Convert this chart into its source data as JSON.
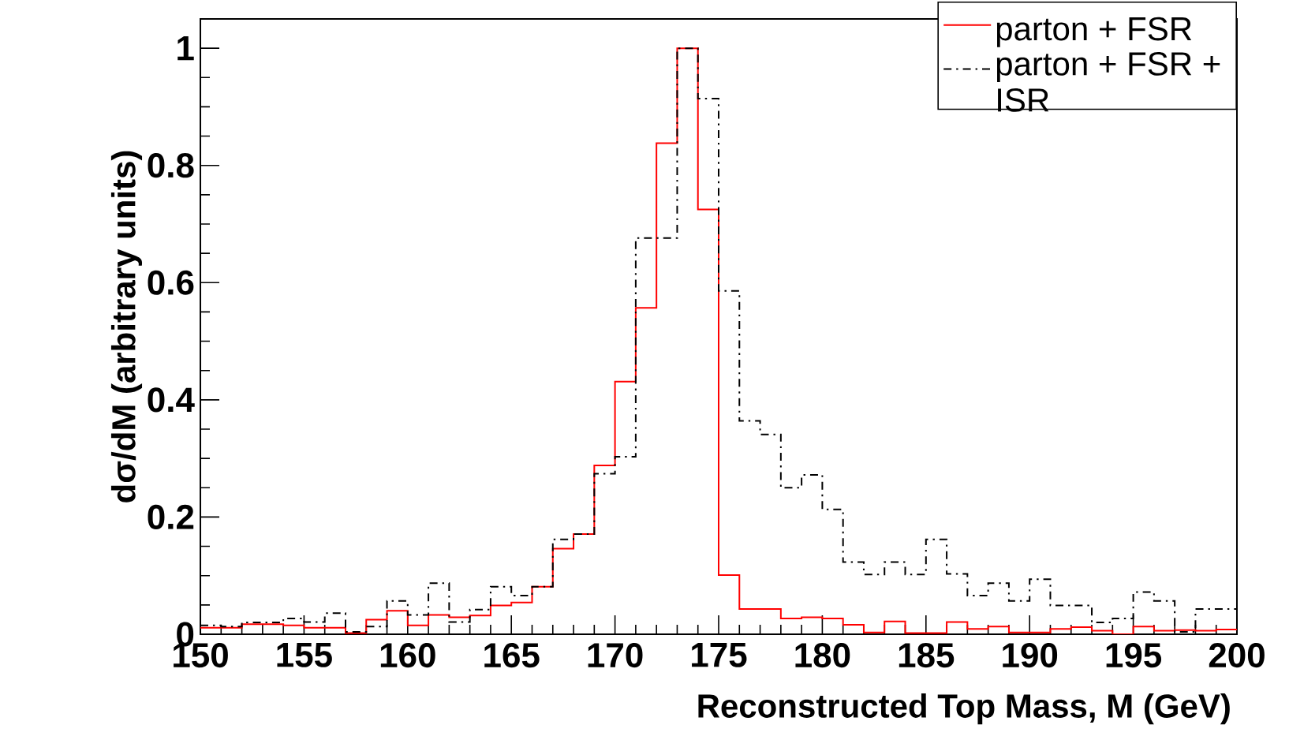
{
  "chart_data": {
    "type": "histogram",
    "xlabel": "Reconstructed Top Mass, M (GeV)",
    "ylabel": "dσ/dM (arbitrary units)",
    "bins": [
      150,
      151,
      152,
      153,
      154,
      155,
      156,
      157,
      158,
      159,
      160,
      161,
      162,
      163,
      164,
      165,
      166,
      167,
      168,
      169,
      170,
      171,
      172,
      173,
      174,
      175,
      176,
      177,
      178,
      179,
      180,
      181,
      182,
      183,
      184,
      185,
      186,
      187,
      188,
      189,
      190,
      191,
      192,
      193,
      194,
      195,
      196,
      197,
      198,
      199,
      200
    ],
    "xlim": [
      150,
      200
    ],
    "xticks": [
      150,
      155,
      160,
      165,
      170,
      175,
      180,
      185,
      190,
      195,
      200
    ],
    "ylim": [
      0,
      1.05
    ],
    "yticks": [
      0,
      0.2,
      0.4,
      0.6,
      0.8,
      1
    ],
    "legend": "top right",
    "series": [
      {
        "name": "parton + FSR",
        "color": "#ff0000",
        "line_style": "solid",
        "values": [
          0.011,
          0.011,
          0.017,
          0.017,
          0.015,
          0.011,
          0.011,
          0.002,
          0.025,
          0.04,
          0.015,
          0.033,
          0.029,
          0.032,
          0.049,
          0.054,
          0.081,
          0.146,
          0.171,
          0.288,
          0.431,
          0.557,
          0.838,
          1.0,
          0.725,
          0.101,
          0.043,
          0.043,
          0.027,
          0.029,
          0.027,
          0.016,
          0.003,
          0.022,
          0.002,
          0.002,
          0.021,
          0.009,
          0.013,
          0.003,
          0.003,
          0.009,
          0.012,
          0.006,
          0,
          0.013,
          0.006,
          0.007,
          0.006,
          0.008
        ]
      },
      {
        "name": "parton + FSR + ISR",
        "color": "#000000",
        "line_style": "dashdot",
        "values": [
          0.015,
          0.013,
          0.02,
          0.02,
          0.027,
          0.021,
          0.036,
          0.004,
          0.013,
          0.057,
          0.033,
          0.087,
          0.021,
          0.042,
          0.081,
          0.066,
          0.081,
          0.162,
          0.171,
          0.274,
          0.303,
          0.676,
          0.676,
          1.0,
          0.914,
          0.586,
          0.364,
          0.341,
          0.25,
          0.272,
          0.213,
          0.123,
          0.102,
          0.123,
          0.102,
          0.162,
          0.103,
          0.066,
          0.087,
          0.057,
          0.094,
          0.049,
          0.049,
          0.02,
          0.027,
          0.072,
          0.057,
          0.004,
          0.043,
          0.043
        ]
      }
    ]
  }
}
